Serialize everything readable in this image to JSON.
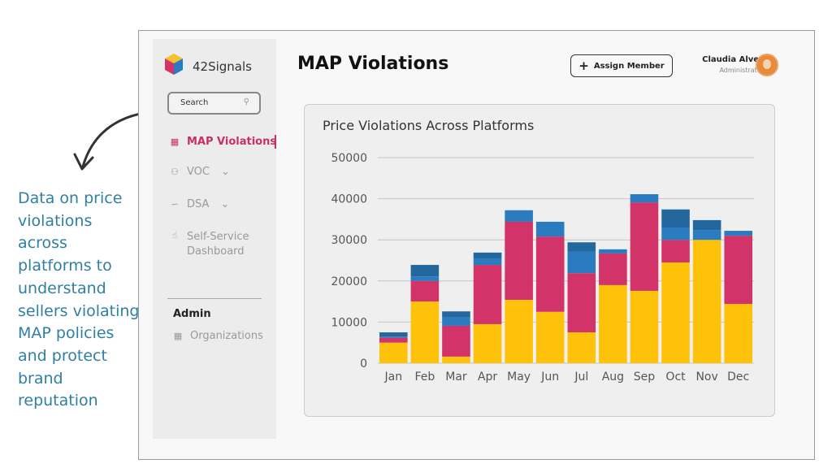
{
  "caption": "Data on price violations across platforms to understand sellers violating MAP policies and protect brand reputation",
  "sidebar": {
    "brand": "42Signals",
    "logo_text": "42SIGNALS",
    "search_placeholder": "Search",
    "items": [
      {
        "label": "MAP Violations",
        "icon": "grid-icon",
        "active": true
      },
      {
        "label": "VOC",
        "icon": "users-icon",
        "chevron": true
      },
      {
        "label": "DSA",
        "icon": "line-chart-icon",
        "chevron": true
      },
      {
        "label": "Self-Service Dashboard",
        "icon": "pointer-icon"
      }
    ],
    "section": "Admin",
    "admin_items": [
      {
        "label": "Organizations",
        "icon": "grid-icon"
      }
    ]
  },
  "header": {
    "title": "MAP Violations",
    "assign_button": "Assign Member",
    "user_name": "Claudia Alves",
    "user_role": "Administrator"
  },
  "colors": {
    "yellow": "#FFC20A",
    "pink": "#D23369",
    "blue": "#2A7BBF",
    "dark_blue": "#22689E",
    "accent": "#C8315F"
  },
  "chart_data": {
    "type": "bar",
    "stacked": true,
    "title": "Price Violations Across Platforms",
    "categories": [
      "Jan",
      "Feb",
      "Mar",
      "Apr",
      "May",
      "Jun",
      "Jul",
      "Aug",
      "Sep",
      "Oct",
      "Nov",
      "Dec"
    ],
    "series": [
      {
        "color": "#FFC20A",
        "values": [
          5000,
          15000,
          1600,
          9500,
          15400,
          12500,
          7500,
          19000,
          17600,
          24500,
          30000,
          14400
        ]
      },
      {
        "color": "#D23369",
        "values": [
          1200,
          5000,
          7500,
          14400,
          19000,
          18300,
          14400,
          7700,
          21500,
          5500,
          0,
          16600
        ]
      },
      {
        "color": "#2A7BBF",
        "values": [
          300,
          1100,
          2000,
          1600,
          2800,
          3600,
          5200,
          1000,
          2000,
          3000,
          2400,
          1200
        ]
      },
      {
        "color": "#22689E",
        "values": [
          1000,
          2800,
          1500,
          1400,
          0,
          0,
          2300,
          0,
          0,
          4400,
          2400,
          0
        ]
      }
    ],
    "yticks": [
      0,
      10000,
      20000,
      30000,
      40000,
      50000
    ],
    "ylim": [
      0,
      50000
    ],
    "grid": true
  }
}
